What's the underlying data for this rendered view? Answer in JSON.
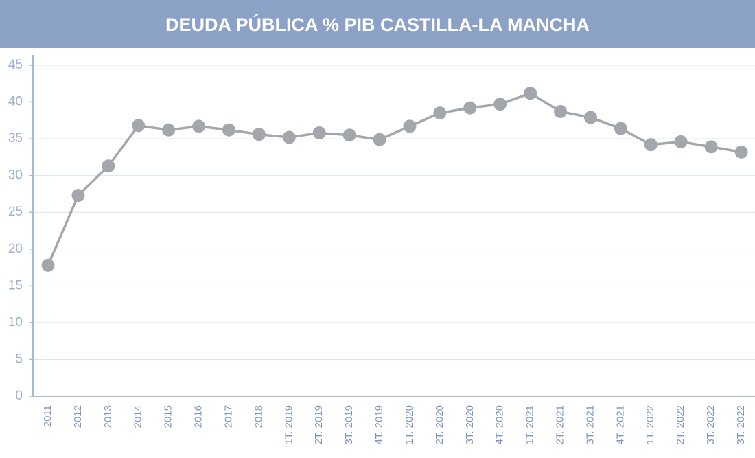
{
  "chart_data": {
    "type": "line",
    "title": "DEUDA PÚBLICA % PIB CASTILLA-LA MANCHA",
    "categories": [
      "2011",
      "2012",
      "2013",
      "2014",
      "2015",
      "2016",
      "2017",
      "2018",
      "1T. 2019",
      "2T. 2019",
      "3T. 2019",
      "4T. 2019",
      "1T. 2020",
      "2T. 2020",
      "3T. 2020",
      "4T. 2020",
      "1T. 2021",
      "2T. 2021",
      "3T. 2021",
      "4T. 2021",
      "1T. 2022",
      "2T. 2022",
      "3T. 2022",
      "3T. 2022"
    ],
    "values": [
      17.8,
      27.3,
      31.3,
      36.8,
      36.2,
      36.7,
      36.2,
      35.6,
      35.2,
      35.8,
      35.5,
      34.9,
      36.7,
      38.5,
      39.2,
      39.7,
      41.2,
      38.7,
      37.9,
      36.4,
      34.2,
      34.6,
      33.9,
      33.2
    ],
    "color": "#a3a6ab",
    "ylim": [
      0,
      45
    ],
    "yticks": [
      0,
      5,
      10,
      15,
      20,
      25,
      30,
      35,
      40,
      45
    ],
    "grid": true
  }
}
